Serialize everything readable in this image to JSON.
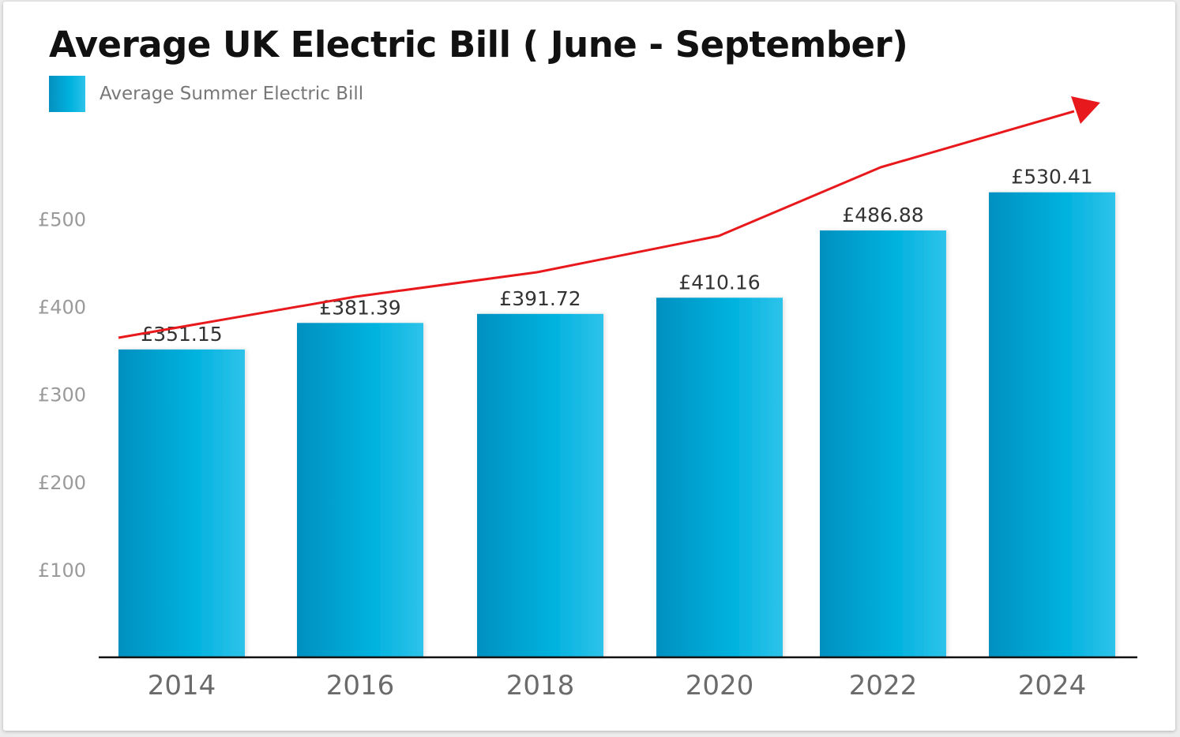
{
  "chart_data": {
    "type": "bar",
    "title": "Average UK Electric Bill ( June - September)",
    "xlabel": "",
    "ylabel": "",
    "categories": [
      "2014",
      "2016",
      "2018",
      "2020",
      "2022",
      "2024"
    ],
    "series": [
      {
        "name": "Average Summer Electric Bill",
        "values": [
          351.15,
          381.39,
          391.72,
          410.16,
          486.88,
          530.41
        ],
        "data_labels": [
          "£351.15",
          "£381.39",
          "£391.72",
          "£410.16",
          "£486.88",
          "£530.41"
        ]
      }
    ],
    "yticks": [
      100,
      200,
      300,
      400,
      500
    ],
    "ytick_labels": [
      "£100",
      "£200",
      "£300",
      "£400",
      "£500"
    ],
    "grid": false,
    "legend": "top-left",
    "trend_arrow": true,
    "colors": {
      "bar_dark": "#0590c0",
      "bar_mid": "#00b2de",
      "bar_light": "#2ec3ea",
      "trend": "#e8191c",
      "axis": "#111111"
    }
  }
}
